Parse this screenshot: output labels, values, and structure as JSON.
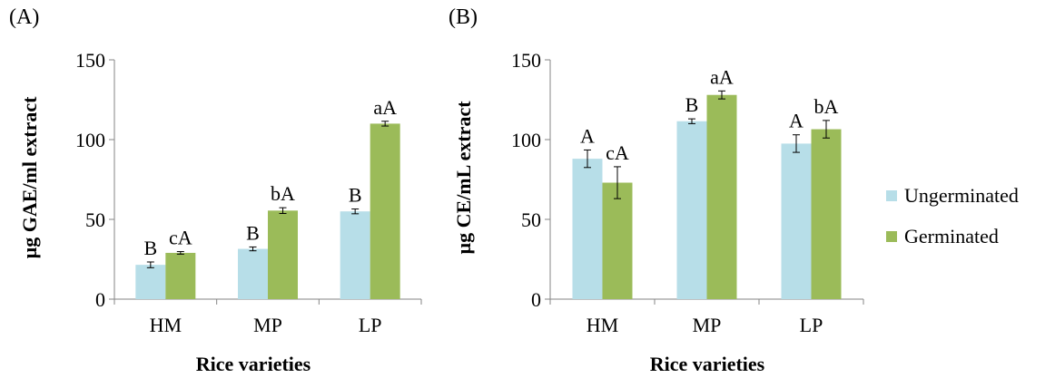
{
  "panels": [
    {
      "label": "(A)",
      "chart_data": {
        "type": "bar",
        "categories": [
          "HM",
          "MP",
          "LP"
        ],
        "ylim": [
          0,
          150
        ],
        "yticks": [
          0,
          50,
          100,
          150
        ],
        "ylabel": "µg GAE/ml extract",
        "xlabel": "Rice varieties",
        "series": [
          {
            "name": "Ungerminated",
            "values": [
              21.5,
              31.5,
              55.0
            ],
            "errors": [
              1.8,
              1.2,
              1.5
            ],
            "labels": [
              "B",
              "B",
              "B"
            ]
          },
          {
            "name": "Germinated",
            "values": [
              29.0,
              55.5,
              110.0
            ],
            "errors": [
              0.8,
              1.8,
              1.5
            ],
            "labels": [
              "cA",
              "bA",
              "aA"
            ]
          }
        ]
      }
    },
    {
      "label": "(B)",
      "chart_data": {
        "type": "bar",
        "categories": [
          "HM",
          "MP",
          "LP"
        ],
        "ylim": [
          0,
          150
        ],
        "yticks": [
          0,
          50,
          100,
          150
        ],
        "ylabel": "µg CE/mL extract",
        "xlabel": "Rice varieties",
        "series": [
          {
            "name": "Ungerminated",
            "values": [
              88.0,
              111.5,
              97.5
            ],
            "errors": [
              5.5,
              1.5,
              5.5
            ],
            "labels": [
              "A",
              "B",
              "A"
            ]
          },
          {
            "name": "Germinated",
            "values": [
              73.0,
              128.0,
              106.5
            ],
            "errors": [
              10.0,
              2.5,
              5.5
            ],
            "labels": [
              "cA",
              "aA",
              "bA"
            ]
          }
        ]
      }
    }
  ],
  "legend": {
    "position": "right",
    "items": [
      {
        "name": "Ungerminated",
        "color": "#b7dee8"
      },
      {
        "name": "Germinated",
        "color": "#9bbb59"
      }
    ]
  }
}
